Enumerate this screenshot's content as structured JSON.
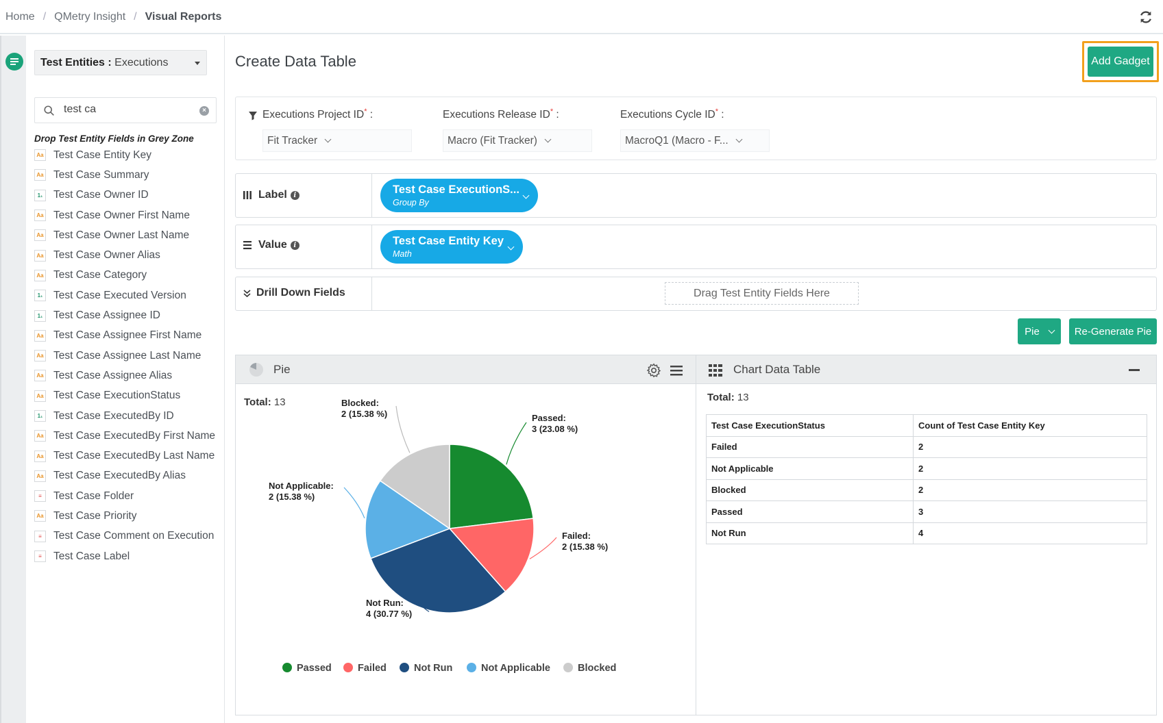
{
  "breadcrumb": {
    "home": "Home",
    "insight": "QMetry Insight",
    "current": "Visual Reports"
  },
  "sidebar": {
    "entity_label": "Test Entities :",
    "entity_value": "Executions",
    "search_value": "test ca",
    "drop_hint": "Drop Test Entity Fields in Grey Zone",
    "fields": [
      {
        "label": "Test Case Entity Key",
        "type": "text"
      },
      {
        "label": "Test Case Summary",
        "type": "text"
      },
      {
        "label": "Test Case Owner ID",
        "type": "number"
      },
      {
        "label": "Test Case Owner First Name",
        "type": "text"
      },
      {
        "label": "Test Case Owner Last Name",
        "type": "text"
      },
      {
        "label": "Test Case Owner Alias",
        "type": "text"
      },
      {
        "label": "Test Case Category",
        "type": "text"
      },
      {
        "label": "Test Case Executed Version",
        "type": "number"
      },
      {
        "label": "Test Case Assignee ID",
        "type": "number"
      },
      {
        "label": "Test Case Assignee First Name",
        "type": "text"
      },
      {
        "label": "Test Case Assignee Last Name",
        "type": "text"
      },
      {
        "label": "Test Case Assignee Alias",
        "type": "text"
      },
      {
        "label": "Test Case ExecutionStatus",
        "type": "text"
      },
      {
        "label": "Test Case ExecutedBy ID",
        "type": "number"
      },
      {
        "label": "Test Case ExecutedBy First Name",
        "type": "text"
      },
      {
        "label": "Test Case ExecutedBy Last Name",
        "type": "text"
      },
      {
        "label": "Test Case ExecutedBy Alias",
        "type": "text"
      },
      {
        "label": "Test Case Folder",
        "type": "list"
      },
      {
        "label": "Test Case Priority",
        "type": "text"
      },
      {
        "label": "Test Case Comment on Execution",
        "type": "list"
      },
      {
        "label": "Test Case Label",
        "type": "list"
      }
    ]
  },
  "main": {
    "title": "Create Data Table",
    "add_gadget": "Add Gadget",
    "filters": [
      {
        "label": "Executions Project ID",
        "value": "Fit Tracker"
      },
      {
        "label": "Executions Release ID",
        "value": "Macro (Fit Tracker)"
      },
      {
        "label": "Executions Cycle ID",
        "value": "MacroQ1 (Macro - F..."
      }
    ],
    "label_zone": {
      "title": "Label",
      "pill_title": "Test Case ExecutionS...",
      "pill_sub": "Group By"
    },
    "value_zone": {
      "title": "Value",
      "pill_title": "Test Case Entity Key",
      "pill_sub": "Math"
    },
    "drill_zone": {
      "title": "Drill Down Fields",
      "placeholder": "Drag Test Entity Fields Here"
    },
    "chart_type_button": "Pie",
    "regenerate_button": "Re-Generate Pie"
  },
  "pie_panel": {
    "title": "Pie",
    "total_label": "Total:",
    "total_value": "13"
  },
  "table_panel": {
    "title": "Chart Data Table",
    "total_label": "Total:",
    "total_value": "13",
    "headers": [
      "Test Case ExecutionStatus",
      "Count of Test Case Entity Key"
    ],
    "rows": [
      [
        "Failed",
        "2"
      ],
      [
        "Not Applicable",
        "2"
      ],
      [
        "Blocked",
        "2"
      ],
      [
        "Passed",
        "3"
      ],
      [
        "Not Run",
        "4"
      ]
    ]
  },
  "chart_data": {
    "type": "pie",
    "slices": [
      {
        "name": "Passed",
        "value": 3,
        "label_line1": "Passed:",
        "label_line2": "3 (23.08 %)",
        "color": "#168a2f"
      },
      {
        "name": "Failed",
        "value": 2,
        "label_line1": "Failed:",
        "label_line2": "2 (15.38 %)",
        "color": "#ff6666"
      },
      {
        "name": "Not Run",
        "value": 4,
        "label_line1": "Not Run:",
        "label_line2": "4 (30.77 %)",
        "color": "#1f4e80"
      },
      {
        "name": "Not Applicable",
        "value": 2,
        "label_line1": "Not Applicable:",
        "label_line2": "2 (15.38 %)",
        "color": "#5bb0e6"
      },
      {
        "name": "Blocked",
        "value": 2,
        "label_line1": "Blocked:",
        "label_line2": "2 (15.38 %)",
        "color": "#cccccc"
      }
    ],
    "legend": [
      "Passed",
      "Failed",
      "Not Run",
      "Not Applicable",
      "Blocked"
    ],
    "legend_position": "bottom"
  }
}
